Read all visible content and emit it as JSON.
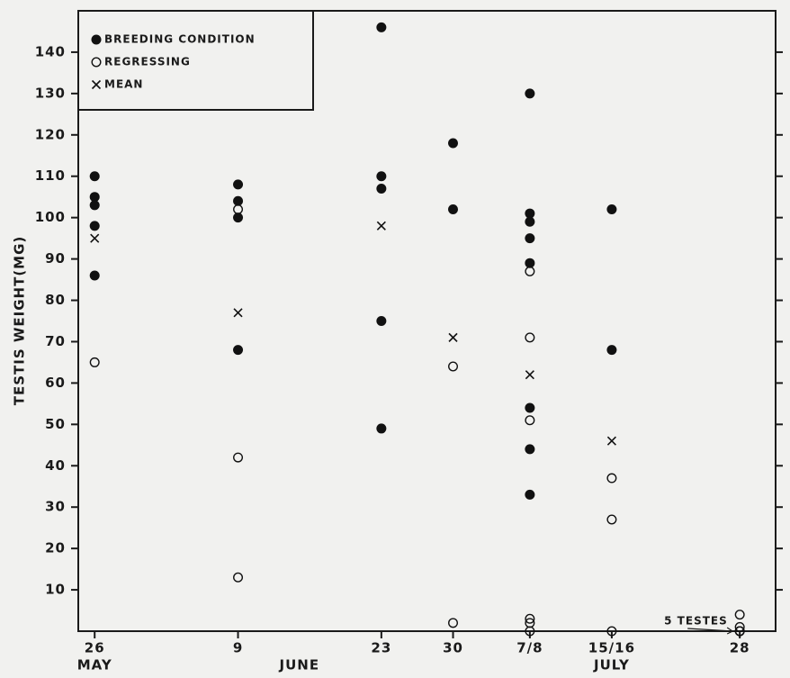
{
  "chart_data": {
    "type": "scatter",
    "ylabel": "TESTIS WEIGHT(MG)",
    "ylim": [
      0,
      150
    ],
    "yticks": [
      10,
      20,
      30,
      40,
      50,
      60,
      70,
      80,
      90,
      100,
      110,
      120,
      130,
      140
    ],
    "xlim": [
      -1.6,
      66.5
    ],
    "xticks": [
      {
        "value": 0,
        "label": "26"
      },
      {
        "value": 14,
        "label": "9"
      },
      {
        "value": 28,
        "label": "23"
      },
      {
        "value": 35,
        "label": "30"
      },
      {
        "value": 42.5,
        "label": "7/8"
      },
      {
        "value": 50.5,
        "label": "15/16"
      },
      {
        "value": 63,
        "label": "28"
      }
    ],
    "months": [
      {
        "value": 0,
        "label": "MAY"
      },
      {
        "value": 20,
        "label": "JUNE"
      },
      {
        "value": 50.5,
        "label": "JULY"
      }
    ],
    "annotation": {
      "text": "5 TESTES",
      "x": 63,
      "y": 0
    },
    "legend": "upper left",
    "series": [
      {
        "name": "BREEDING CONDITION",
        "marker": "filled",
        "color": "#111111",
        "x": [
          0,
          0,
          0,
          0,
          0,
          14,
          14,
          14,
          14,
          28,
          28,
          28,
          28,
          28,
          35,
          35,
          42.5,
          42.5,
          42.5,
          42.5,
          42.5,
          42.5,
          42.5,
          42.5,
          50.5,
          50.5
        ],
        "values": [
          110,
          105,
          103,
          98,
          86,
          108,
          104,
          100,
          68,
          146,
          110,
          107,
          75,
          49,
          118,
          102,
          130,
          101,
          99,
          95,
          89,
          54,
          44,
          33,
          102,
          68
        ]
      },
      {
        "name": "REGRESSING",
        "marker": "open",
        "color": "#111111",
        "x": [
          0,
          14,
          14,
          14,
          35,
          35,
          42.5,
          42.5,
          42.5,
          42.5,
          42.5,
          42.5,
          50.5,
          50.5,
          50.5,
          63,
          63,
          63,
          63,
          63
        ],
        "values": [
          65,
          102,
          42,
          13,
          64,
          2,
          87,
          71,
          51,
          3,
          2,
          0,
          37,
          27,
          0,
          4,
          1,
          0,
          0,
          0
        ]
      },
      {
        "name": "MEAN",
        "marker": "x",
        "color": "#111111",
        "x": [
          0,
          14,
          28,
          35,
          42.5,
          50.5
        ],
        "values": [
          95,
          77,
          98,
          71,
          62,
          46
        ]
      }
    ]
  }
}
